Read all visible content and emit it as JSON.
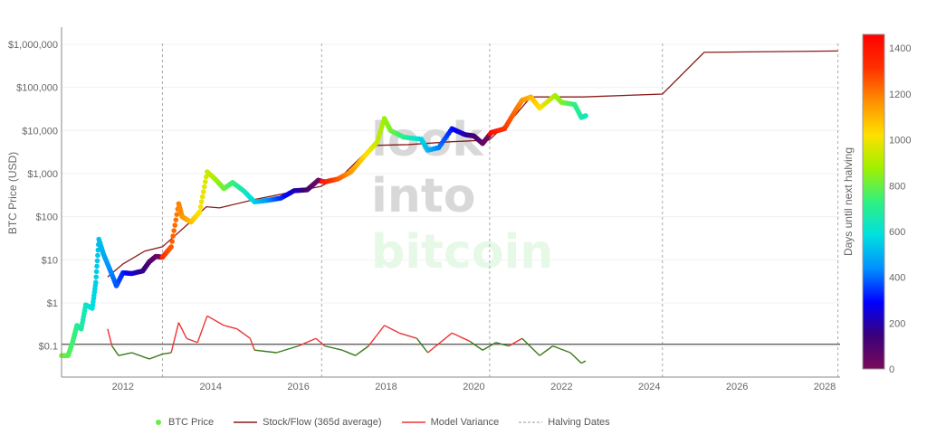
{
  "chart_data": {
    "type": "scatter",
    "ylabel": "BTC Price (USD)",
    "y_scale": "log",
    "ylim": [
      0.019,
      2500000
    ],
    "xlim": [
      2010.6,
      2028.35
    ],
    "x_ticks": [
      "2012",
      "2014",
      "2016",
      "2018",
      "2020",
      "2022",
      "2024",
      "2026",
      "2028"
    ],
    "y_ticks": [
      "$0.1",
      "$1",
      "$10",
      "$100",
      "$1,000",
      "$10,000",
      "$100,000",
      "$1,000,000"
    ],
    "grid": true,
    "legend_placement": "bottom",
    "colorbar": {
      "label": "Days until next halving",
      "range": [
        0,
        1460
      ],
      "ticks": [
        "0",
        "200",
        "400",
        "600",
        "800",
        "1000",
        "1200",
        "1400"
      ],
      "colorscale": [
        "#7a0a5a",
        "#3a007a",
        "#0000ff",
        "#0090ff",
        "#00e0e0",
        "#30f080",
        "#a0f000",
        "#ffe000",
        "#ff9000",
        "#ff3000",
        "#ff0000"
      ]
    },
    "watermark": [
      "look",
      "into",
      "bitcoin"
    ],
    "halving_dates": [
      2012.9,
      2016.53,
      2020.36,
      2024.3,
      2028.3
    ],
    "variance_threshold": 0.11,
    "series": [
      {
        "name": "BTC Price",
        "color": "#66ee44",
        "points": [
          [
            2010.6,
            0.06
          ],
          [
            2010.75,
            0.06
          ],
          [
            2010.85,
            0.12
          ],
          [
            2010.95,
            0.3
          ],
          [
            2011.05,
            0.25
          ],
          [
            2011.15,
            0.9
          ],
          [
            2011.3,
            0.75
          ],
          [
            2011.38,
            3
          ],
          [
            2011.45,
            30
          ],
          [
            2011.55,
            14
          ],
          [
            2011.7,
            6
          ],
          [
            2011.85,
            2.5
          ],
          [
            2012.0,
            5
          ],
          [
            2012.2,
            4.8
          ],
          [
            2012.45,
            5.5
          ],
          [
            2012.6,
            9
          ],
          [
            2012.75,
            12
          ],
          [
            2012.9,
            11.5
          ],
          [
            2013.1,
            20
          ],
          [
            2013.27,
            200
          ],
          [
            2013.35,
            100
          ],
          [
            2013.55,
            75
          ],
          [
            2013.75,
            130
          ],
          [
            2013.92,
            1100
          ],
          [
            2014.1,
            750
          ],
          [
            2014.3,
            450
          ],
          [
            2014.5,
            620
          ],
          [
            2014.75,
            400
          ],
          [
            2015.0,
            220
          ],
          [
            2015.3,
            240
          ],
          [
            2015.6,
            270
          ],
          [
            2015.9,
            400
          ],
          [
            2016.2,
            420
          ],
          [
            2016.45,
            700
          ],
          [
            2016.6,
            640
          ],
          [
            2016.9,
            750
          ],
          [
            2017.2,
            1100
          ],
          [
            2017.5,
            2500
          ],
          [
            2017.8,
            5500
          ],
          [
            2017.96,
            19000
          ],
          [
            2018.1,
            10000
          ],
          [
            2018.4,
            7000
          ],
          [
            2018.8,
            6300
          ],
          [
            2018.95,
            3500
          ],
          [
            2019.2,
            4000
          ],
          [
            2019.5,
            11000
          ],
          [
            2019.8,
            8000
          ],
          [
            2020.0,
            7500
          ],
          [
            2020.2,
            5000
          ],
          [
            2020.4,
            9000
          ],
          [
            2020.7,
            11000
          ],
          [
            2020.95,
            29000
          ],
          [
            2021.1,
            50000
          ],
          [
            2021.3,
            60000
          ],
          [
            2021.5,
            33000
          ],
          [
            2021.85,
            65000
          ],
          [
            2022.0,
            45000
          ],
          [
            2022.3,
            40000
          ],
          [
            2022.45,
            20000
          ],
          [
            2022.55,
            22000
          ]
        ]
      },
      {
        "name": "Stock/Flow (365d average)",
        "color": "#8b1a1a",
        "points": [
          [
            2011.65,
            4
          ],
          [
            2012.0,
            8
          ],
          [
            2012.5,
            16
          ],
          [
            2012.9,
            20
          ],
          [
            2013.5,
            70
          ],
          [
            2013.9,
            170
          ],
          [
            2014.2,
            160
          ],
          [
            2015.0,
            250
          ],
          [
            2016.0,
            400
          ],
          [
            2016.5,
            500
          ],
          [
            2017.0,
            900
          ],
          [
            2017.7,
            4500
          ],
          [
            2018.5,
            4700
          ],
          [
            2019.5,
            5500
          ],
          [
            2020.35,
            6000
          ],
          [
            2020.9,
            20000
          ],
          [
            2021.3,
            60000
          ],
          [
            2022.5,
            60000
          ],
          [
            2024.3,
            70000
          ],
          [
            2025.25,
            650000
          ],
          [
            2028.3,
            700000
          ]
        ]
      },
      {
        "name": "Model Variance",
        "color_above": "#ee3333",
        "color_below": "#3a7a1a",
        "points": [
          [
            2011.65,
            0.25
          ],
          [
            2011.75,
            0.1
          ],
          [
            2011.9,
            0.06
          ],
          [
            2012.2,
            0.07
          ],
          [
            2012.6,
            0.05
          ],
          [
            2012.9,
            0.065
          ],
          [
            2013.1,
            0.07
          ],
          [
            2013.27,
            0.35
          ],
          [
            2013.45,
            0.15
          ],
          [
            2013.7,
            0.12
          ],
          [
            2013.92,
            0.5
          ],
          [
            2014.3,
            0.3
          ],
          [
            2014.6,
            0.25
          ],
          [
            2014.9,
            0.15
          ],
          [
            2015.0,
            0.08
          ],
          [
            2015.5,
            0.07
          ],
          [
            2016.0,
            0.1
          ],
          [
            2016.4,
            0.15
          ],
          [
            2016.6,
            0.1
          ],
          [
            2017.0,
            0.08
          ],
          [
            2017.3,
            0.06
          ],
          [
            2017.6,
            0.1
          ],
          [
            2017.96,
            0.3
          ],
          [
            2018.3,
            0.2
          ],
          [
            2018.7,
            0.15
          ],
          [
            2018.95,
            0.07
          ],
          [
            2019.5,
            0.2
          ],
          [
            2019.9,
            0.13
          ],
          [
            2020.2,
            0.08
          ],
          [
            2020.5,
            0.12
          ],
          [
            2020.8,
            0.1
          ],
          [
            2021.1,
            0.15
          ],
          [
            2021.5,
            0.06
          ],
          [
            2021.8,
            0.1
          ],
          [
            2022.2,
            0.07
          ],
          [
            2022.45,
            0.04
          ],
          [
            2022.55,
            0.045
          ]
        ]
      },
      {
        "name": "Halving Dates",
        "color": "#999999"
      }
    ]
  }
}
